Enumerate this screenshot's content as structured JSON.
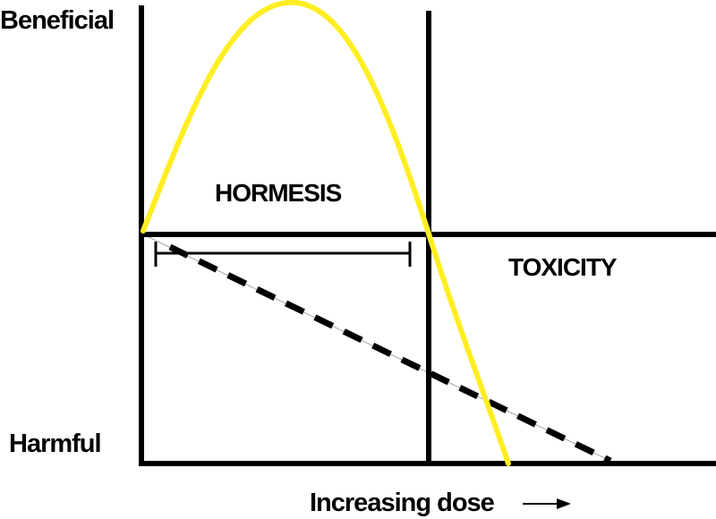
{
  "labels": {
    "y_top": "Beneficial",
    "y_bottom": "Harmful",
    "x_axis": "Increasing dose",
    "region_left": "HORMESIS",
    "region_right": "TOXICITY"
  },
  "colors": {
    "hormetic_curve": "#FFEE22",
    "lines": "#000000",
    "background": "#FFFFFF"
  },
  "legend_arrow_icon": "right-arrow-icon"
}
